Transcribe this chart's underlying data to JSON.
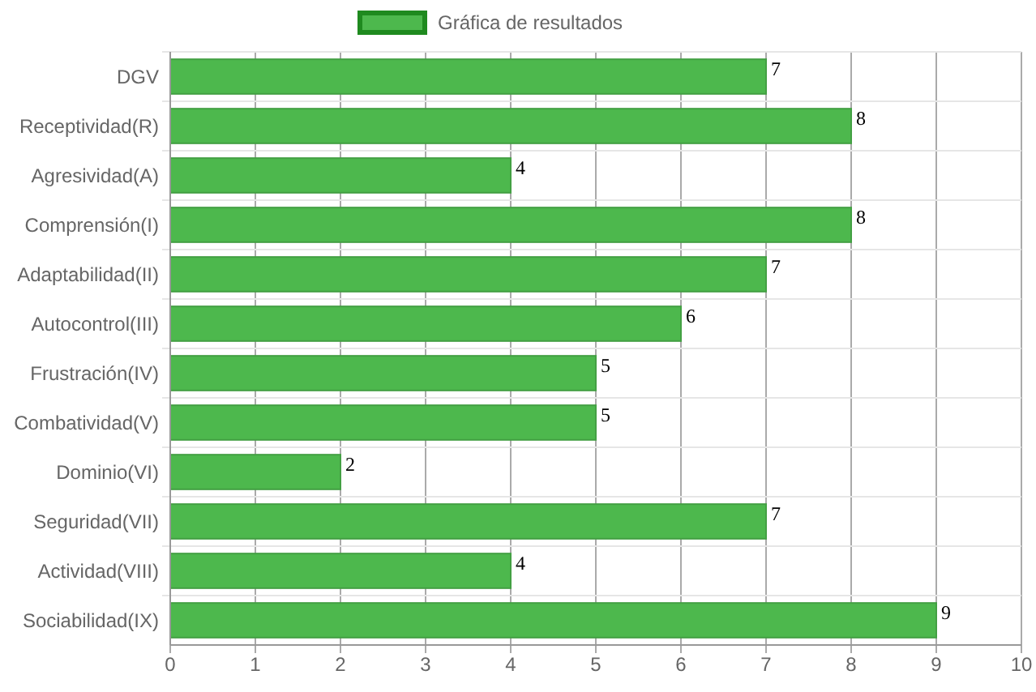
{
  "chart_data": {
    "type": "bar",
    "orientation": "horizontal",
    "categories": [
      "DGV",
      "Receptividad(R)",
      "Agresividad(A)",
      "Comprensión(I)",
      "Adaptabilidad(II)",
      "Autocontrol(III)",
      "Frustración(IV)",
      "Combatividad(V)",
      "Dominio(VI)",
      "Seguridad(VII)",
      "Actividad(VIII)",
      "Sociabilidad(IX)"
    ],
    "series": [
      {
        "name": "Gráfica de resultados",
        "color": "#4db84d",
        "values": [
          7,
          8,
          4,
          8,
          7,
          6,
          5,
          5,
          2,
          7,
          4,
          9
        ]
      }
    ],
    "xlim": [
      0,
      10
    ],
    "xticks": [
      0,
      1,
      2,
      3,
      4,
      5,
      6,
      7,
      8,
      9,
      10
    ],
    "grid": true,
    "legend": "top",
    "data_labels": true
  }
}
